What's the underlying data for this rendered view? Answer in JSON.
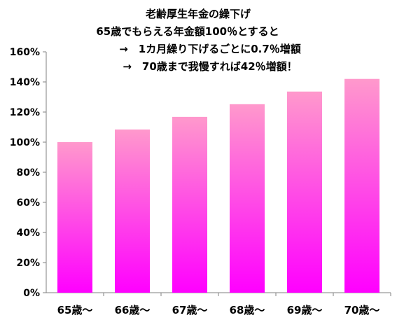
{
  "chart_data": {
    "type": "bar",
    "title_lines": [
      "老齢厚生年金の繰下げ",
      "65歳でもらえる年金額100％とすると",
      "→　1カ月繰り下げるごとに0.7％増額",
      "→　70歳まで我慢すれば42％増額！"
    ],
    "categories": [
      "65歳～",
      "66歳～",
      "67歳～",
      "68歳～",
      "69歳～",
      "70歳～"
    ],
    "values": [
      100,
      108.4,
      116.8,
      125.2,
      133.6,
      142
    ],
    "ylim": [
      0,
      160
    ],
    "yticks": [
      0,
      20,
      40,
      60,
      80,
      100,
      120,
      140,
      160
    ],
    "ytick_labels": [
      "0%",
      "20%",
      "40%",
      "60%",
      "80%",
      "100%",
      "120%",
      "140%",
      "160%"
    ],
    "grid": false,
    "legend": "none",
    "bar_color_top": "#ff99cc",
    "bar_color_bottom": "#ff00ff",
    "axis_color": "#808080"
  }
}
